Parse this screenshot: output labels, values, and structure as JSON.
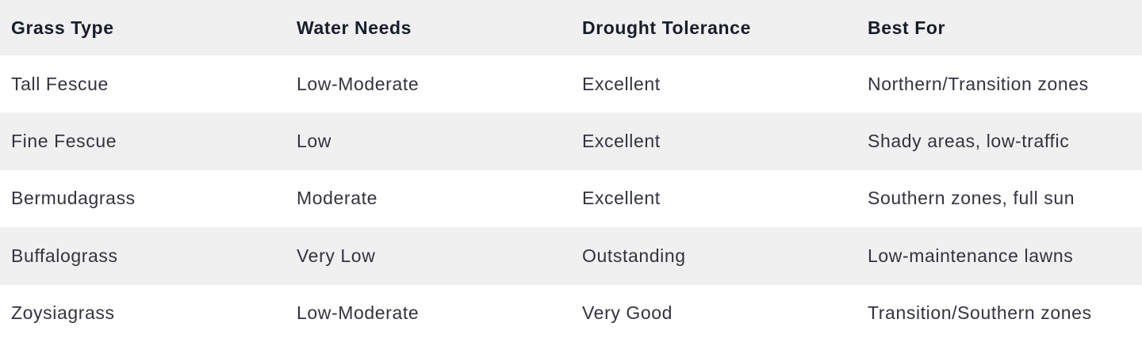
{
  "colors": {
    "stripe": "#f0f0f1",
    "background": "#ffffff",
    "header_text": "#171d2b",
    "body_text": "#33343c"
  },
  "table": {
    "columns": [
      "Grass Type",
      "Water Needs",
      "Drought Tolerance",
      "Best For"
    ],
    "rows": [
      {
        "grass_type": "Tall Fescue",
        "water_needs": "Low-Moderate",
        "drought_tolerance": "Excellent",
        "best_for": "Northern/Transition zones"
      },
      {
        "grass_type": "Fine Fescue",
        "water_needs": "Low",
        "drought_tolerance": "Excellent",
        "best_for": "Shady areas, low-traffic"
      },
      {
        "grass_type": "Bermudagrass",
        "water_needs": "Moderate",
        "drought_tolerance": "Excellent",
        "best_for": "Southern zones, full sun"
      },
      {
        "grass_type": "Buffalograss",
        "water_needs": "Very Low",
        "drought_tolerance": "Outstanding",
        "best_for": "Low-maintenance lawns"
      },
      {
        "grass_type": "Zoysiagrass",
        "water_needs": "Low-Moderate",
        "drought_tolerance": "Very Good",
        "best_for": "Transition/Southern zones"
      }
    ]
  },
  "chart_data": {
    "type": "table",
    "title": "",
    "columns": [
      "Grass Type",
      "Water Needs",
      "Drought Tolerance",
      "Best For"
    ],
    "rows": [
      [
        "Tall Fescue",
        "Low-Moderate",
        "Excellent",
        "Northern/Transition zones"
      ],
      [
        "Fine Fescue",
        "Low",
        "Excellent",
        "Shady areas, low-traffic"
      ],
      [
        "Bermudagrass",
        "Moderate",
        "Excellent",
        "Southern zones, full sun"
      ],
      [
        "Buffalograss",
        "Very Low",
        "Outstanding",
        "Low-maintenance lawns"
      ],
      [
        "Zoysiagrass",
        "Low-Moderate",
        "Very Good",
        "Transition/Southern zones"
      ]
    ]
  }
}
